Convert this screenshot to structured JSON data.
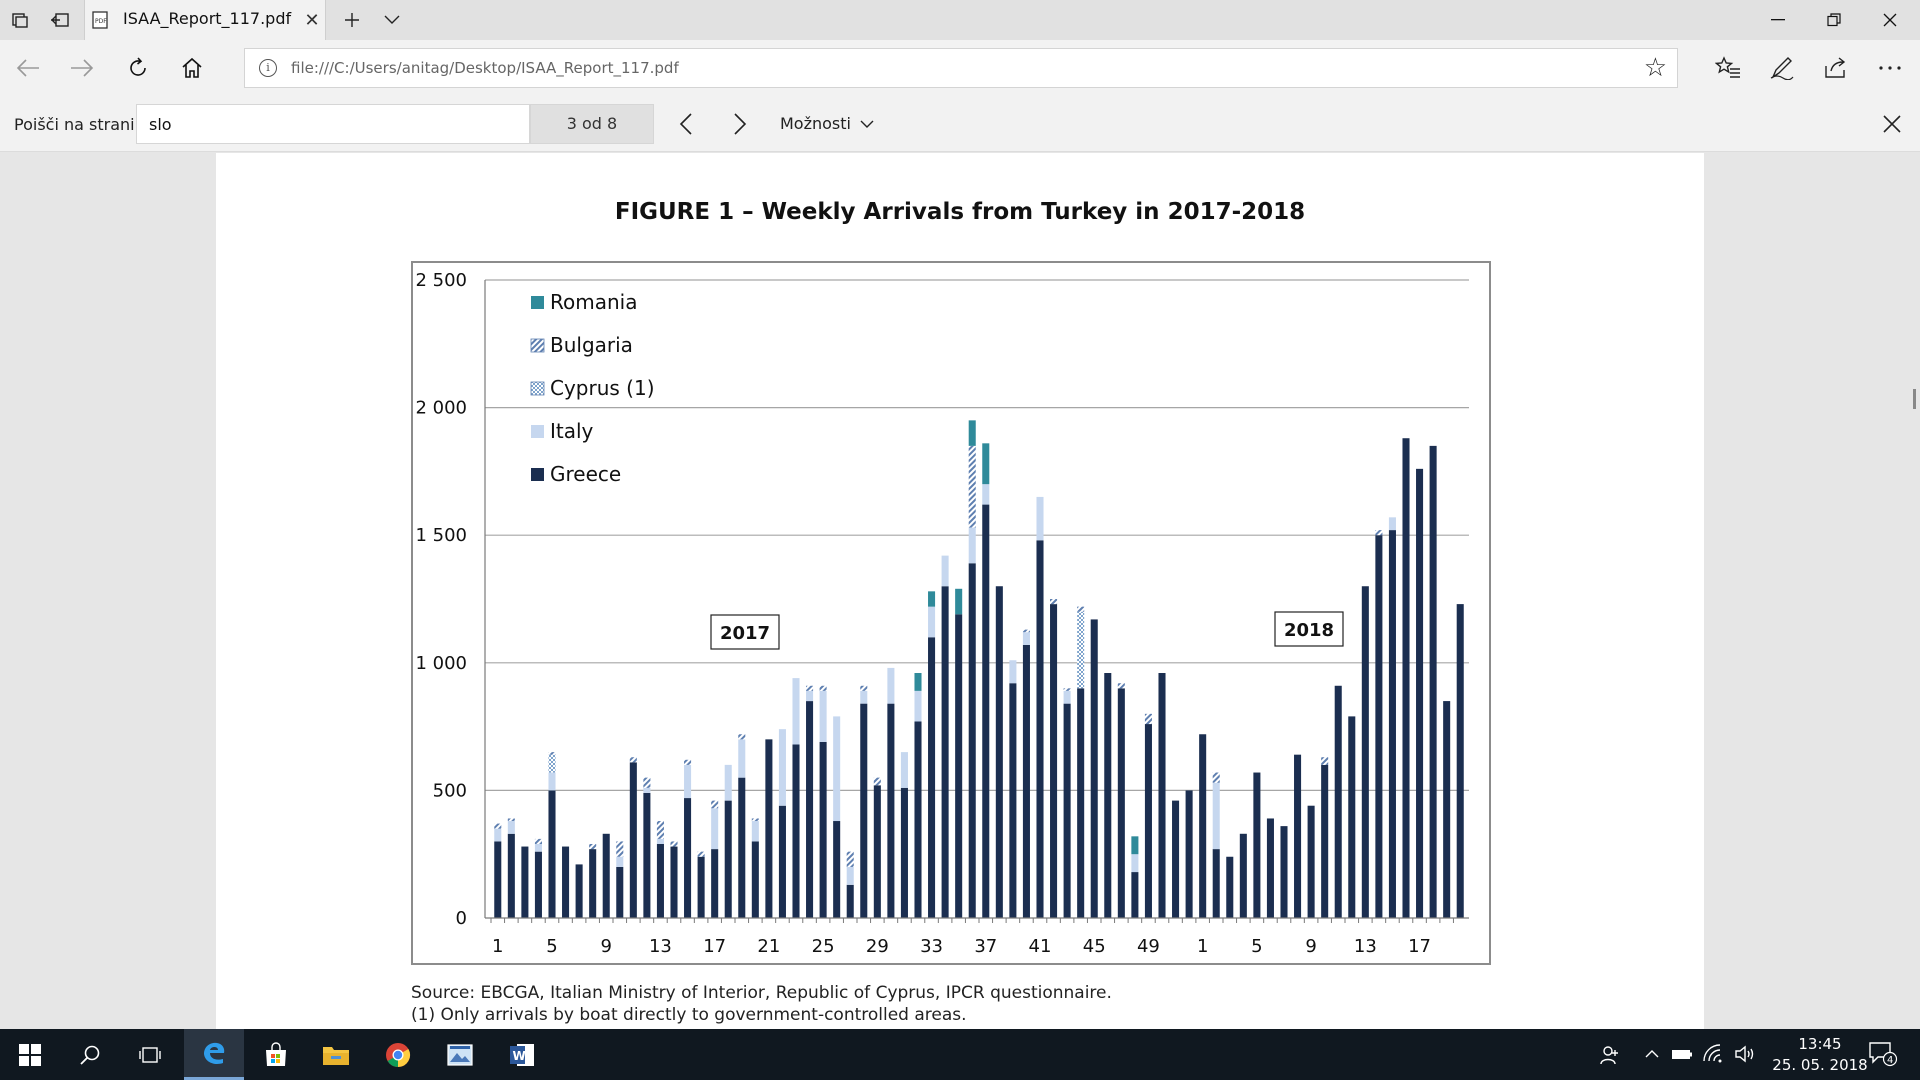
{
  "browser": {
    "tab_title": "ISAA_Report_117.pdf",
    "address_url": "file:///C:/Users/anitag/Desktop/ISAA_Report_117.pdf"
  },
  "find_bar": {
    "label": "Poišči na strani",
    "query": "slo",
    "match_count": "3 od 8",
    "options_label": "Možnosti"
  },
  "document": {
    "figure_title": "FIGURE 1 – Weekly Arrivals from Turkey in 2017-2018",
    "source_note": "Source: EBCGA, Italian Ministry of Interior, Republic of Cyprus, IPCR questionnaire.",
    "footnote": "(1) Only arrivals by boat directly to government-controlled areas."
  },
  "chart_data": {
    "type": "bar",
    "stacked": true,
    "y_ticks": [
      "0",
      "500",
      "1 000",
      "1 500",
      "2 000",
      "2 500"
    ],
    "ylim": [
      0,
      2500
    ],
    "x_tick_labels": [
      "1",
      "5",
      "9",
      "13",
      "17",
      "21",
      "25",
      "29",
      "33",
      "37",
      "41",
      "45",
      "49",
      "1",
      "5",
      "9",
      "13",
      "17"
    ],
    "year_labels": [
      "2017",
      "2018"
    ],
    "legend": [
      "Romania",
      "Bulgaria",
      "Cyprus (1)",
      "Italy",
      "Greece"
    ],
    "legend_placement": "top-left",
    "colors": {
      "Greece": "#1b2e50",
      "Italy": "#c6d7ef",
      "Cyprus (1)": "#9dbad8",
      "Bulgaria": "#5e7fb0",
      "Romania": "#2f8a9a"
    },
    "series": [
      {
        "name": "Greece",
        "values": [
          300,
          330,
          280,
          260,
          500,
          280,
          210,
          270,
          330,
          200,
          610,
          490,
          290,
          280,
          470,
          240,
          270,
          460,
          550,
          300,
          700,
          440,
          680,
          850,
          690,
          380,
          130,
          840,
          520,
          840,
          510,
          770,
          1100,
          1300,
          1190,
          1390,
          1620,
          1300,
          920,
          1070,
          1480,
          1230,
          840,
          900,
          1170,
          960,
          900,
          180,
          760,
          960,
          460,
          500,
          720,
          270,
          240,
          330,
          570,
          390,
          360,
          640,
          440,
          600,
          910,
          790,
          1300,
          1500,
          1520,
          1880,
          1760,
          1850,
          850,
          1230
        ]
      },
      {
        "name": "Italy",
        "values": [
          50,
          50,
          0,
          30,
          70,
          0,
          0,
          0,
          0,
          40,
          0,
          20,
          20,
          0,
          130,
          0,
          160,
          140,
          150,
          80,
          0,
          300,
          260,
          40,
          200,
          410,
          70,
          50,
          0,
          140,
          140,
          120,
          120,
          120,
          0,
          140,
          80,
          0,
          90,
          50,
          170,
          0,
          50,
          0,
          0,
          0,
          0,
          70,
          0,
          0,
          0,
          0,
          0,
          260,
          0,
          0,
          0,
          0,
          0,
          0,
          0,
          0,
          0,
          0,
          0,
          0,
          50,
          0,
          0,
          0,
          0,
          0
        ]
      },
      {
        "name": "Cyprus (1)",
        "values": [
          0,
          0,
          0,
          0,
          70,
          0,
          0,
          0,
          0,
          0,
          0,
          0,
          0,
          0,
          0,
          0,
          0,
          0,
          0,
          0,
          0,
          0,
          0,
          0,
          0,
          0,
          0,
          0,
          0,
          0,
          0,
          0,
          0,
          0,
          0,
          0,
          0,
          0,
          0,
          0,
          0,
          0,
          0,
          300,
          0,
          0,
          0,
          0,
          0,
          0,
          0,
          0,
          0,
          0,
          0,
          0,
          0,
          0,
          0,
          0,
          0,
          0,
          0,
          0,
          0,
          0,
          0,
          0,
          0,
          0,
          0,
          0
        ]
      },
      {
        "name": "Bulgaria",
        "values": [
          20,
          10,
          0,
          20,
          10,
          0,
          0,
          20,
          0,
          60,
          20,
          40,
          70,
          20,
          20,
          20,
          30,
          0,
          20,
          10,
          0,
          0,
          0,
          20,
          20,
          0,
          60,
          20,
          30,
          0,
          0,
          0,
          0,
          0,
          0,
          320,
          0,
          0,
          0,
          10,
          0,
          20,
          10,
          20,
          0,
          0,
          20,
          0,
          40,
          0,
          0,
          0,
          0,
          40,
          0,
          0,
          0,
          0,
          0,
          0,
          0,
          30,
          0,
          0,
          0,
          20,
          0,
          0,
          0,
          0,
          0,
          0
        ]
      },
      {
        "name": "Romania",
        "values": [
          0,
          0,
          0,
          0,
          0,
          0,
          0,
          0,
          0,
          0,
          0,
          0,
          0,
          0,
          0,
          0,
          0,
          0,
          0,
          0,
          0,
          0,
          0,
          0,
          0,
          0,
          0,
          0,
          0,
          0,
          0,
          70,
          60,
          0,
          100,
          100,
          160,
          0,
          0,
          0,
          0,
          0,
          0,
          0,
          0,
          0,
          0,
          70,
          0,
          0,
          0,
          0,
          0,
          0,
          0,
          0,
          0,
          0,
          0,
          0,
          0,
          0,
          0,
          0,
          0,
          0,
          0,
          0,
          0,
          0,
          0,
          0
        ]
      }
    ]
  },
  "taskbar": {
    "clock_time": "13:45",
    "clock_date": "25. 05. 2018",
    "notification_count": "4"
  }
}
